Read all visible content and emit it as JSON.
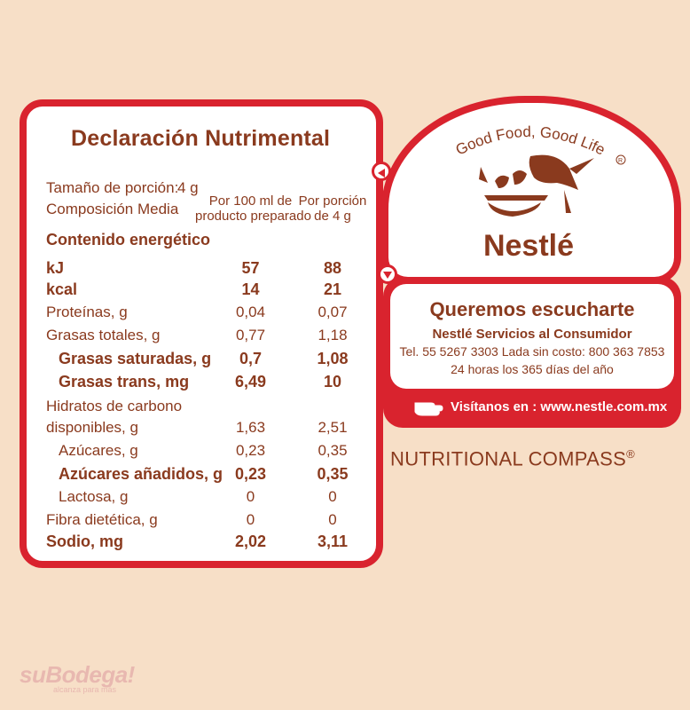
{
  "nutrition": {
    "title": "Declaración Nutrimental",
    "serving_label": "Tamaño de porción:",
    "serving_value": "4 g",
    "composition_label": "Composición Media",
    "col1_header": "Por 100 ml de producto preparado",
    "col1_header_a": "Por 100 ml de",
    "col1_header_b": "producto preparado",
    "col2_header_a": "Por porción",
    "col2_header_b": "de 4 g",
    "energy_label": "Contenido energético",
    "rows": [
      {
        "label": "kJ",
        "v1": "57",
        "v2": "88",
        "bold": true
      },
      {
        "label": "kcal",
        "v1": "14",
        "v2": "21",
        "bold": true
      },
      {
        "label": "Proteínas, g",
        "v1": "0,04",
        "v2": "0,07",
        "bold": false
      },
      {
        "label": "Grasas totales, g",
        "v1": "0,77",
        "v2": "1,18",
        "bold": false
      },
      {
        "label": "Grasas saturadas, g",
        "v1": "0,7",
        "v2": "1,08",
        "bold": true
      },
      {
        "label": "Grasas trans, mg",
        "v1": "6,49",
        "v2": "10",
        "bold": true
      },
      {
        "label": "Hidratos de carbono",
        "v1": "",
        "v2": "",
        "bold": false
      },
      {
        "label": "disponibles, g",
        "v1": "1,63",
        "v2": "2,51",
        "bold": false
      },
      {
        "label": "Azúcares, g",
        "v1": "0,23",
        "v2": "0,35",
        "bold": false
      },
      {
        "label": "Azúcares añadidos, g",
        "v1": "0,23",
        "v2": "0,35",
        "bold": true
      },
      {
        "label": "Lactosa, g",
        "v1": "0",
        "v2": "0",
        "bold": false
      },
      {
        "label": "Fibra dietética, g",
        "v1": "0",
        "v2": "0",
        "bold": false
      },
      {
        "label": "Sodio, mg",
        "v1": "2,02",
        "v2": "3,11",
        "bold": true
      }
    ]
  },
  "logo": {
    "tagline": "Good Food, Good Life",
    "brand": "Nestlé"
  },
  "contact": {
    "heading": "Queremos escucharte",
    "service": "Nestlé Servicios al Consumidor",
    "phones": "Tel. 55 5267 3303 Lada sin costo: 800 363 7853",
    "hours": "24 horas los 365 días del año",
    "visit": "Visítanos en : www.nestle.com.mx"
  },
  "compass": "NUTRITIONAL COMPASS",
  "watermark": {
    "brand": "suBodega!",
    "sub": "alcanza para más"
  },
  "colors": {
    "background": "#f7dfc7",
    "red": "#d9232e",
    "brown": "#8a3a1e"
  }
}
